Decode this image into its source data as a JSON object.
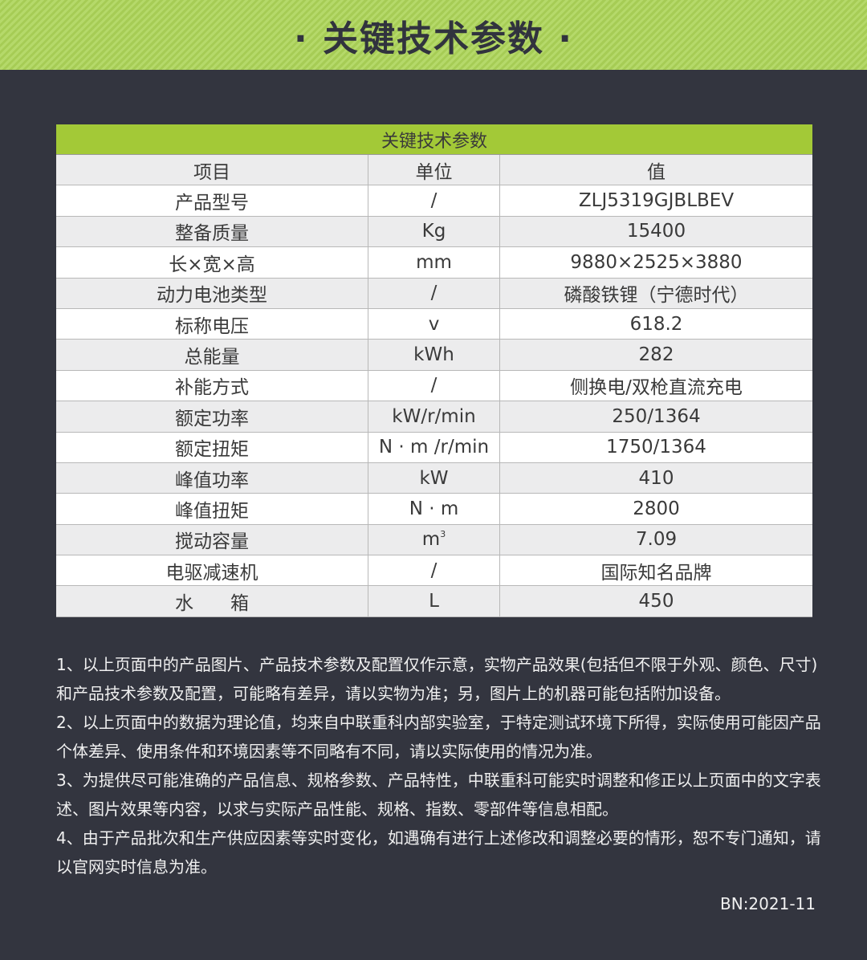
{
  "banner": {
    "title": "· 关键技术参数 ·"
  },
  "table": {
    "title": "关键技术参数",
    "headers": [
      "项目",
      "单位",
      "值"
    ],
    "rows": [
      {
        "item": "产品型号",
        "unit": "/",
        "value": "ZLJ5319GJBLBEV"
      },
      {
        "item": "整备质量",
        "unit": "Kg",
        "value": "15400"
      },
      {
        "item": "长×宽×高",
        "unit": "mm",
        "value": "9880×2525×3880"
      },
      {
        "item": "动力电池类型",
        "unit": "/",
        "value": "磷酸铁锂（宁德时代）"
      },
      {
        "item": "标称电压",
        "unit": "v",
        "value": "618.2"
      },
      {
        "item": "总能量",
        "unit": "kWh",
        "value": "282"
      },
      {
        "item": "补能方式",
        "unit": "/",
        "value": "侧换电/双枪直流充电"
      },
      {
        "item": "额定功率",
        "unit": "kW/r/min",
        "value": "250/1364"
      },
      {
        "item": "额定扭矩",
        "unit": "N · m /r/min",
        "value": "1750/1364"
      },
      {
        "item": "峰值功率",
        "unit": "kW",
        "value": "410"
      },
      {
        "item": "峰值扭矩",
        "unit": "N · m",
        "value": "2800"
      },
      {
        "item": "搅动容量",
        "unit": "m",
        "unit_sup": "3",
        "value": "7.09"
      },
      {
        "item": "电驱减速机",
        "unit": "/",
        "value": "国际知名品牌"
      },
      {
        "item": "水　　箱",
        "unit": "L",
        "value": "450"
      }
    ]
  },
  "notes": [
    "1、以上页面中的产品图片、产品技术参数及配置仅作示意，实物产品效果(包括但不限于外观、颜色、尺寸)和产品技术参数及配置，可能略有差异，请以实物为准；另，图片上的机器可能包括附加设备。",
    "2、以上页面中的数据为理论值，均来自中联重科内部实验室，于特定测试环境下所得，实际使用可能因产品个体差异、使用条件和环境因素等不同略有不同，请以实际使用的情况为准。",
    "3、为提供尽可能准确的产品信息、规格参数、产品特性，中联重科可能实时调整和修正以上页面中的文字表述、图片效果等内容，以求与实际产品性能、规格、指数、零部件等信息相配。",
    "4、由于产品批次和生产供应因素等实时变化，如遇确有进行上述修改和调整必要的情形，恕不专门通知，请以官网实时信息为准。"
  ],
  "footer": {
    "bn": "BN:2021-11"
  },
  "colors": {
    "background": "#33353f",
    "accent_green": "#a3c937",
    "title_text": "#31333e"
  }
}
